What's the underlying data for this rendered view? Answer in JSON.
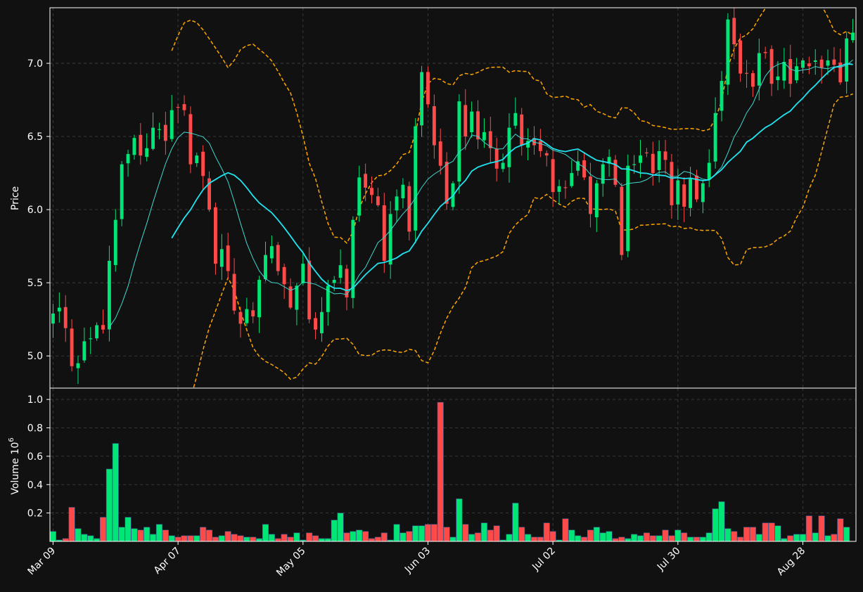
{
  "chart_data": [
    {
      "type": "candlestick",
      "panel": "price",
      "ylabel": "Price",
      "ylim": [
        4.78,
        7.38
      ],
      "yticks": [
        5.0,
        5.5,
        6.0,
        6.5,
        7.0
      ],
      "xticks": [
        {
          "label": "Mar 09",
          "index": 0
        },
        {
          "label": "Apr 07",
          "index": 20
        },
        {
          "label": "May 05",
          "index": 40
        },
        {
          "label": "Jun 03",
          "index": 60
        },
        {
          "label": "Jul 02",
          "index": 80
        },
        {
          "label": "Jul 30",
          "index": 100
        },
        {
          "label": "Aug 28",
          "index": 120
        }
      ],
      "grid": true,
      "colors": {
        "up": "#00e676",
        "down": "#ff4a4a",
        "ma_short": "#40d8d0",
        "ma_long": "#20e4f0",
        "bands": "#ffa500",
        "background": "#111111",
        "grid": "#444444"
      },
      "close": [
        5.29,
        5.33,
        5.19,
        4.93,
        4.95,
        5.1,
        5.12,
        5.21,
        5.18,
        5.65,
        5.93,
        6.31,
        6.38,
        6.49,
        6.37,
        6.42,
        6.56,
        6.55,
        6.47,
        6.68,
        6.7,
        6.68,
        6.31,
        6.37,
        6.23,
        6.0,
        5.63,
        5.73,
        5.58,
        5.31,
        5.22,
        5.32,
        5.27,
        5.52,
        5.69,
        5.75,
        5.58,
        5.49,
        5.33,
        5.48,
        5.63,
        5.25,
        5.18,
        5.3,
        5.48,
        5.52,
        5.62,
        5.4,
        5.93,
        6.22,
        6.15,
        6.1,
        6.03,
        5.65,
        5.97,
        6.09,
        6.17,
        5.85,
        6.57,
        6.94,
        6.72,
        6.44,
        6.3,
        6.04,
        6.18,
        6.74,
        6.5,
        6.67,
        6.48,
        6.53,
        6.42,
        6.28,
        6.32,
        6.56,
        6.66,
        6.44,
        6.47,
        6.44,
        6.4,
        6.37,
        6.12,
        6.16,
        6.15,
        6.25,
        6.33,
        6.22,
        5.97,
        6.18,
        6.31,
        6.36,
        6.17,
        5.69,
        6.3,
        6.31,
        6.37,
        6.39,
        6.25,
        6.4,
        6.34,
        6.03,
        6.2,
        6.02,
        6.21,
        6.07,
        6.18,
        6.32,
        6.66,
        6.88,
        7.3,
        7.13,
        6.93,
        6.93,
        6.84,
        7.07,
        7.07,
        6.86,
        6.91,
        7.01,
        6.86,
        6.98,
        7.02,
        6.98,
        7.02,
        6.97,
        7.02,
        6.99,
        6.87,
        7.17,
        7.21
      ]
    },
    {
      "type": "bar",
      "panel": "volume",
      "ylabel": "Volume",
      "unit_exponent": "6",
      "ylim": [
        0,
        1.08
      ],
      "yticks": [
        0.2,
        0.4,
        0.6,
        0.8,
        1.0
      ],
      "grid": true,
      "values": [
        0.07,
        0.01,
        0.02,
        0.24,
        0.09,
        0.05,
        0.04,
        0.02,
        0.17,
        0.51,
        0.69,
        0.1,
        0.17,
        0.09,
        0.08,
        0.1,
        0.05,
        0.12,
        0.08,
        0.04,
        0.03,
        0.04,
        0.04,
        0.04,
        0.1,
        0.08,
        0.03,
        0.04,
        0.07,
        0.05,
        0.04,
        0.03,
        0.03,
        0.02,
        0.12,
        0.05,
        0.02,
        0.05,
        0.03,
        0.06,
        0.01,
        0.06,
        0.04,
        0.02,
        0.02,
        0.15,
        0.2,
        0.06,
        0.07,
        0.08,
        0.07,
        0.02,
        0.03,
        0.06,
        0.01,
        0.12,
        0.06,
        0.07,
        0.11,
        0.11,
        0.12,
        0.12,
        0.98,
        0.1,
        0.03,
        0.3,
        0.12,
        0.05,
        0.06,
        0.13,
        0.08,
        0.11,
        0.01,
        0.05,
        0.27,
        0.1,
        0.05,
        0.03,
        0.03,
        0.13,
        0.07,
        0.01,
        0.16,
        0.08,
        0.04,
        0.03,
        0.08,
        0.1,
        0.06,
        0.07,
        0.02,
        0.03,
        0.02,
        0.05,
        0.04,
        0.06,
        0.04,
        0.04,
        0.08,
        0.04,
        0.08,
        0.06,
        0.03,
        0.03,
        0.03,
        0.06,
        0.23,
        0.28,
        0.09,
        0.07,
        0.03,
        0.1,
        0.1,
        0.05,
        0.13,
        0.13,
        0.11,
        0.02,
        0.04,
        0.05,
        0.05,
        0.18,
        0.06,
        0.18,
        0.04,
        0.05,
        0.16,
        0.1
      ]
    }
  ]
}
